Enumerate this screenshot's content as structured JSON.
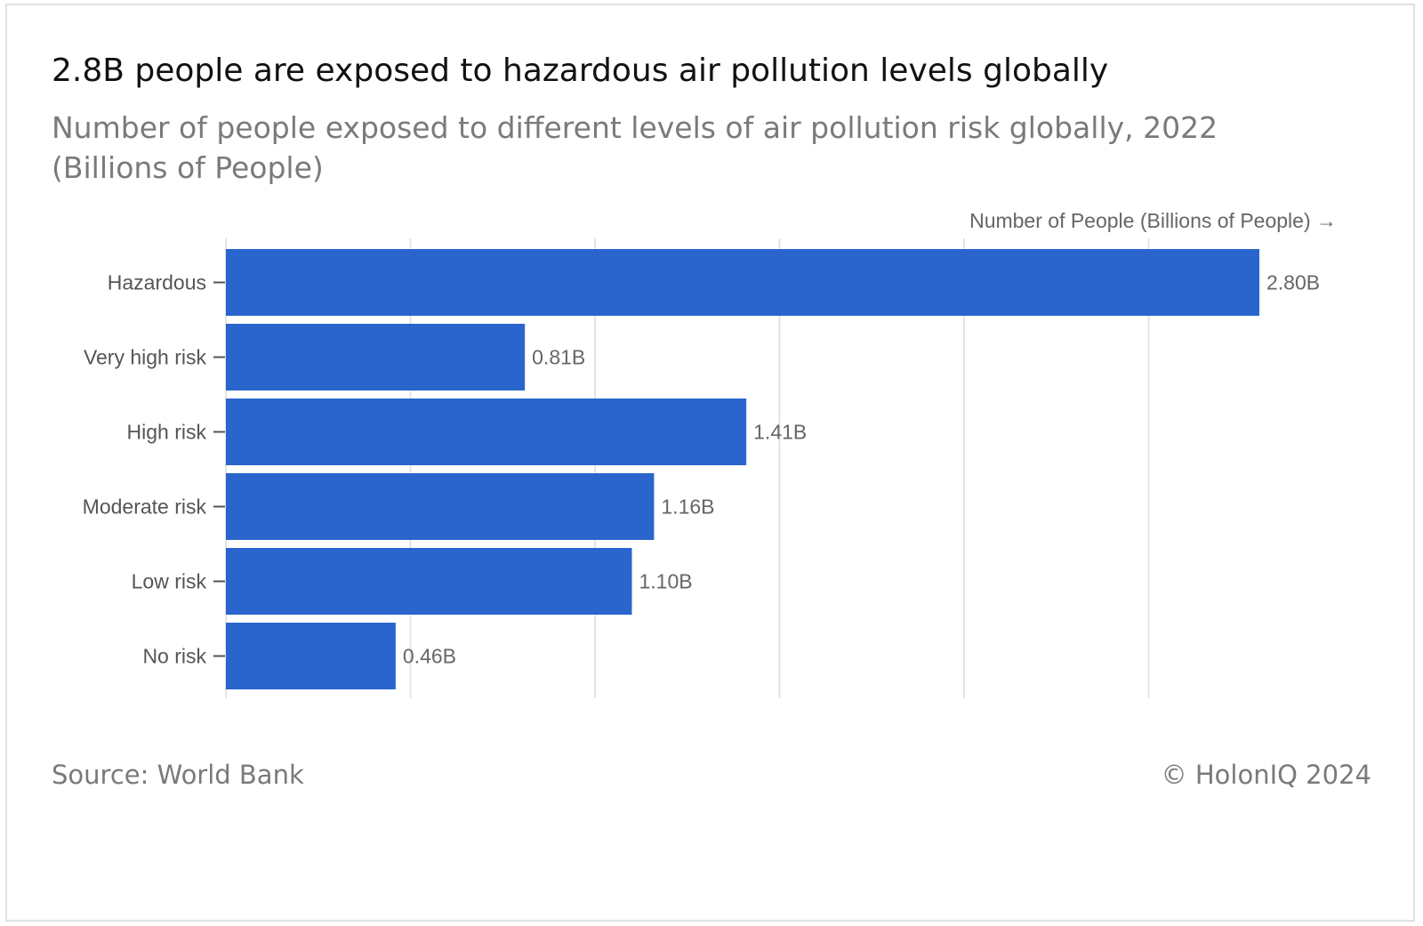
{
  "chart_data": {
    "type": "bar",
    "orientation": "horizontal",
    "title": "2.8B people are exposed to hazardous air pollution levels globally",
    "subtitle": "Number of people exposed to different levels of air pollution risk globally, 2022 (Billions of People)",
    "xlabel": "Number of People (Billions of People) →",
    "ylabel": "",
    "categories": [
      "Hazardous",
      "Very high risk",
      "High risk",
      "Moderate risk",
      "Low risk",
      "No risk"
    ],
    "values": [
      2.8,
      0.81,
      1.41,
      1.16,
      1.1,
      0.46
    ],
    "data_labels": [
      "2.80B",
      "0.81B",
      "1.41B",
      "1.16B",
      "1.10B",
      "0.46B"
    ],
    "xlim": [
      0,
      3.0
    ],
    "x_gridlines": [
      0,
      0.5,
      1.0,
      1.5,
      2.0,
      2.5
    ],
    "grid": true,
    "legend": "none",
    "bar_color": "#2965cc",
    "source": "Source: World Bank",
    "credit": "© HolonIQ 2024"
  }
}
